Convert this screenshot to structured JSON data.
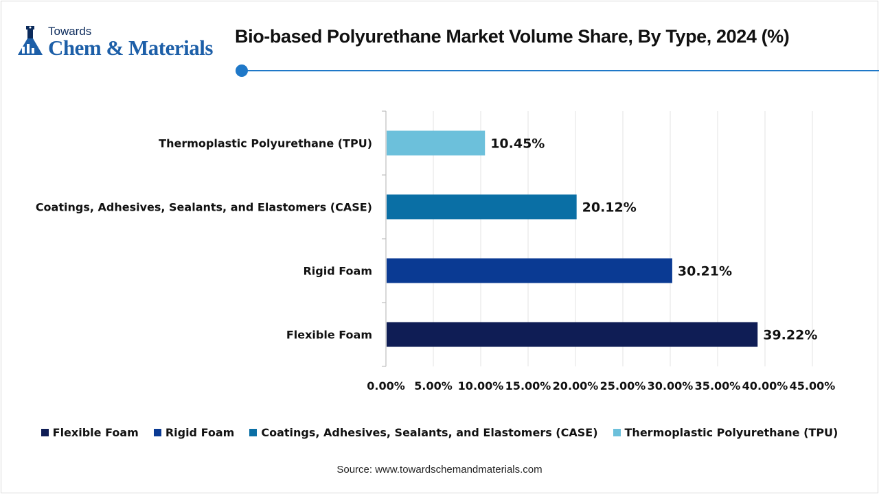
{
  "logo": {
    "line1": "Towards",
    "line2": "Chem & Materials"
  },
  "chart_data": {
    "type": "bar",
    "orientation": "horizontal",
    "title": "Bio-based Polyurethane Market Volume Share, By Type, 2024 (%)",
    "categories": [
      "Flexible Foam",
      "Rigid Foam",
      "Coatings, Adhesives, Sealants, and Elastomers (CASE)",
      "Thermoplastic Polyurethane (TPU)"
    ],
    "values": [
      39.22,
      30.21,
      20.12,
      10.45
    ],
    "value_labels": [
      "39.22%",
      "30.21%",
      "20.12%",
      "10.45%"
    ],
    "colors": [
      "#0f1d55",
      "#0a3a93",
      "#0a6fa5",
      "#6cc0db"
    ],
    "xlim": [
      0,
      45
    ],
    "xticks": [
      "0.00%",
      "5.00%",
      "10.00%",
      "15.00%",
      "20.00%",
      "25.00%",
      "30.00%",
      "35.00%",
      "40.00%",
      "45.00%"
    ],
    "xtick_values": [
      0,
      5,
      10,
      15,
      20,
      25,
      30,
      35,
      40,
      45
    ],
    "grid": true,
    "legend": [
      "Flexible Foam",
      "Rigid Foam",
      "Coatings, Adhesives, Sealants, and Elastomers (CASE)",
      "Thermoplastic Polyurethane (TPU)"
    ],
    "legend_position": "bottom"
  },
  "source": "Source: www.towardschemandmaterials.com"
}
